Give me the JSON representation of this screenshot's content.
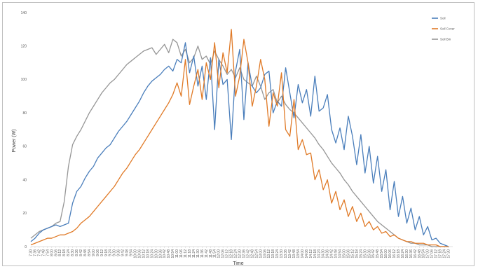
{
  "chart_data": {
    "type": "line",
    "title": "",
    "xlabel": "Time",
    "ylabel": "Power (W)",
    "ylim": [
      0,
      140
    ],
    "yticks": [
      0,
      20,
      40,
      60,
      80,
      100,
      120,
      140
    ],
    "grid": false,
    "legend_position": "top-right",
    "categories": [
      "7:30",
      "7:36",
      "7:42",
      "7:48",
      "7:54",
      "8:00",
      "8:06",
      "8:12",
      "8:18",
      "8:24",
      "8:30",
      "8:36",
      "8:42",
      "8:48",
      "8:54",
      "9:00",
      "9:06",
      "9:12",
      "9:18",
      "9:24",
      "9:30",
      "9:36",
      "9:42",
      "9:48",
      "9:54",
      "10:00",
      "10:06",
      "10:12",
      "10:18",
      "10:24",
      "10:30",
      "10:36",
      "10:42",
      "10:48",
      "10:54",
      "11:00",
      "11:06",
      "11:12",
      "11:18",
      "11:24",
      "11:30",
      "11:36",
      "11:42",
      "11:48",
      "11:54",
      "12:00",
      "12:06",
      "12:12",
      "12:18",
      "12:24",
      "12:30",
      "12:36",
      "12:42",
      "12:48",
      "12:54",
      "13:00",
      "13:06",
      "13:12",
      "13:18",
      "13:24",
      "13:30",
      "13:36",
      "13:42",
      "13:48",
      "13:54",
      "14:00",
      "14:06",
      "14:12",
      "14:18",
      "14:24",
      "14:30",
      "14:36",
      "14:42",
      "14:48",
      "14:54",
      "15:00",
      "15:06",
      "15:12",
      "15:18",
      "15:24",
      "15:30",
      "15:36",
      "15:42",
      "15:48",
      "15:54",
      "16:00",
      "16:06",
      "16:12",
      "16:18",
      "16:24",
      "16:30",
      "16:36",
      "16:42",
      "16:48",
      "16:54",
      "17:00",
      "17:06",
      "17:12",
      "17:18",
      "17:24",
      "17:30"
    ],
    "series": [
      {
        "name": "Soil",
        "color": "#4a7ebb",
        "values": [
          3,
          5,
          8,
          10,
          11,
          12,
          13,
          12,
          13,
          14,
          26,
          33,
          36,
          41,
          45,
          48,
          53,
          56,
          59,
          61,
          65,
          69,
          72,
          75,
          79,
          83,
          87,
          92,
          96,
          99,
          101,
          103,
          106,
          108,
          105,
          112,
          110,
          122,
          104,
          114,
          96,
          108,
          88,
          113,
          70,
          112,
          97,
          100,
          64,
          105,
          118,
          76,
          110,
          96,
          92,
          95,
          103,
          105,
          80,
          87,
          84,
          107,
          92,
          77,
          97,
          86,
          94,
          78,
          102,
          81,
          83,
          91,
          70,
          62,
          71,
          58,
          78,
          66,
          49,
          67,
          44,
          60,
          38,
          54,
          33,
          46,
          22,
          39,
          18,
          30,
          14,
          23,
          10,
          18,
          7,
          12,
          4,
          5,
          2,
          1,
          0
        ]
      },
      {
        "name": "Soil Cover",
        "color": "#e07a27",
        "values": [
          1,
          2,
          3,
          4,
          5,
          5,
          6,
          7,
          7,
          8,
          9,
          11,
          14,
          16,
          18,
          21,
          24,
          27,
          30,
          33,
          36,
          40,
          44,
          47,
          51,
          55,
          58,
          62,
          66,
          70,
          74,
          78,
          82,
          86,
          91,
          98,
          90,
          112,
          85,
          96,
          106,
          88,
          110,
          100,
          122,
          95,
          116,
          104,
          130,
          90,
          102,
          124,
          110,
          84,
          96,
          112,
          100,
          72,
          92,
          84,
          104,
          70,
          66,
          88,
          58,
          64,
          55,
          56,
          40,
          46,
          34,
          40,
          26,
          33,
          22,
          28,
          18,
          24,
          15,
          20,
          12,
          15,
          10,
          12,
          8,
          9,
          6,
          7,
          5,
          4,
          3,
          3,
          2,
          2,
          2,
          1,
          1,
          1,
          0,
          0,
          0
        ]
      },
      {
        "name": "Soil Bin",
        "color": "#969696",
        "values": [
          5,
          7,
          9,
          10,
          11,
          12,
          14,
          15,
          27,
          48,
          61,
          66,
          70,
          75,
          80,
          84,
          88,
          92,
          95,
          98,
          100,
          103,
          106,
          109,
          111,
          113,
          115,
          117,
          118,
          119,
          115,
          118,
          121,
          116,
          124,
          122,
          114,
          118,
          110,
          113,
          120,
          112,
          114,
          109,
          117,
          112,
          108,
          103,
          106,
          101,
          107,
          100,
          98,
          96,
          102,
          96,
          88,
          92,
          94,
          86,
          90,
          85,
          82,
          80,
          77,
          74,
          71,
          68,
          65,
          61,
          58,
          54,
          50,
          47,
          44,
          40,
          37,
          33,
          30,
          27,
          24,
          21,
          18,
          15,
          13,
          11,
          9,
          7,
          5,
          4,
          3,
          2,
          2,
          1,
          1,
          1,
          0,
          0,
          0,
          0,
          0
        ]
      }
    ]
  }
}
